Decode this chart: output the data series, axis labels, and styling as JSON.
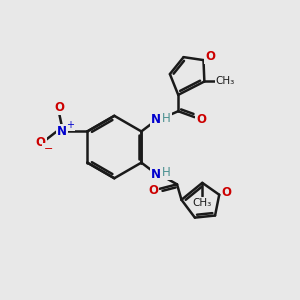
{
  "bg_color": "#e8e8e8",
  "bond_color": "#1a1a1a",
  "bond_width": 1.8,
  "atom_colors": {
    "C": "#1a1a1a",
    "N": "#0000cd",
    "O": "#cc0000",
    "H": "#4a9090"
  }
}
